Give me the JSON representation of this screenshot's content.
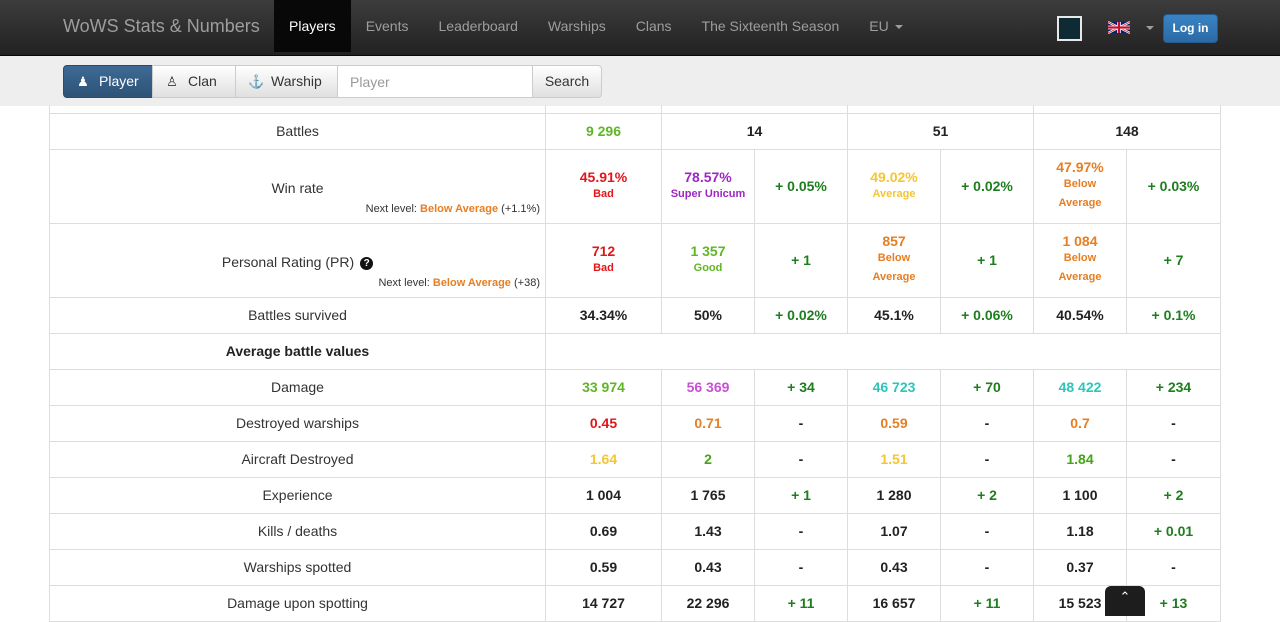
{
  "navbar": {
    "brand": "WoWS Stats & Numbers",
    "items": [
      {
        "label": "Players",
        "active": true
      },
      {
        "label": "Events"
      },
      {
        "label": "Leaderboard"
      },
      {
        "label": "Warships"
      },
      {
        "label": "Clans"
      },
      {
        "label": "The Sixteenth Season"
      },
      {
        "label": "EU"
      }
    ],
    "login": "Log in"
  },
  "search": {
    "tabs": [
      "Player",
      "Clan",
      "Warship"
    ],
    "placeholder": "Player",
    "button": "Search"
  },
  "stats": {
    "battles": {
      "label": "Battles",
      "overall": "9 296",
      "c1": "14",
      "c2": "51",
      "c3": "148"
    },
    "winrate": {
      "label": "Win rate",
      "next_prefix": "Next level:",
      "next_level": "Below Average",
      "next_delta": "(+1.1%)",
      "overall": "45.91%",
      "overall_tag": "Bad",
      "c1": "78.57%",
      "c1_tag": "Super Unicum",
      "c1_delta": "+ 0.05%",
      "c2": "49.02%",
      "c2_tag": "Average",
      "c2_delta": "+ 0.02%",
      "c3": "47.97%",
      "c3_tag1": "Below",
      "c3_tag2": "Average",
      "c3_delta": "+ 0.03%"
    },
    "pr": {
      "label": "Personal Rating (PR)",
      "next_prefix": "Next level:",
      "next_level": "Below Average",
      "next_delta": "(+38)",
      "overall": "712",
      "overall_tag": "Bad",
      "c1": "1 357",
      "c1_tag": "Good",
      "c1_delta": "+ 1",
      "c2": "857",
      "c2_tag1": "Below",
      "c2_tag2": "Average",
      "c2_delta": "+ 1",
      "c3": "1 084",
      "c3_tag1": "Below",
      "c3_tag2": "Average",
      "c3_delta": "+ 7"
    },
    "survived": {
      "label": "Battles survived",
      "overall": "34.34%",
      "c1": "50%",
      "c1_delta": "+ 0.02%",
      "c2": "45.1%",
      "c2_delta": "+ 0.06%",
      "c3": "40.54%",
      "c3_delta": "+ 0.1%"
    },
    "avg_header": "Average battle values",
    "damage": {
      "label": "Damage",
      "overall": "33 974",
      "c1": "56 369",
      "c1_delta": "+ 34",
      "c2": "46 723",
      "c2_delta": "+ 70",
      "c3": "48 422",
      "c3_delta": "+ 234"
    },
    "destroyed": {
      "label": "Destroyed warships",
      "overall": "0.45",
      "c1": "0.71",
      "c1_delta": "-",
      "c2": "0.59",
      "c2_delta": "-",
      "c3": "0.7",
      "c3_delta": "-"
    },
    "aircraft": {
      "label": "Aircraft Destroyed",
      "overall": "1.64",
      "c1": "2",
      "c1_delta": "-",
      "c2": "1.51",
      "c2_delta": "-",
      "c3": "1.84",
      "c3_delta": "-"
    },
    "experience": {
      "label": "Experience",
      "overall": "1 004",
      "c1": "1 765",
      "c1_delta": "+ 1",
      "c2": "1 280",
      "c2_delta": "+ 2",
      "c3": "1 100",
      "c3_delta": "+ 2"
    },
    "kd": {
      "label": "Kills / deaths",
      "overall": "0.69",
      "c1": "1.43",
      "c1_delta": "-",
      "c2": "1.07",
      "c2_delta": "-",
      "c3": "1.18",
      "c3_delta": "+ 0.01"
    },
    "spotted": {
      "label": "Warships spotted",
      "overall": "0.59",
      "c1": "0.43",
      "c1_delta": "-",
      "c2": "0.43",
      "c2_delta": "-",
      "c3": "0.37",
      "c3_delta": "-"
    },
    "spotdmg": {
      "label": "Damage upon spotting",
      "overall": "14 727",
      "c1": "22 296",
      "c1_delta": "+ 11",
      "c2": "16 657",
      "c2_delta": "+ 11",
      "c3": "15 523",
      "c3_delta": "+ 13"
    }
  },
  "colors": {
    "navbar": "#222222",
    "accent": "#2a6aa5",
    "positive_delta": "#1e7d1e"
  }
}
